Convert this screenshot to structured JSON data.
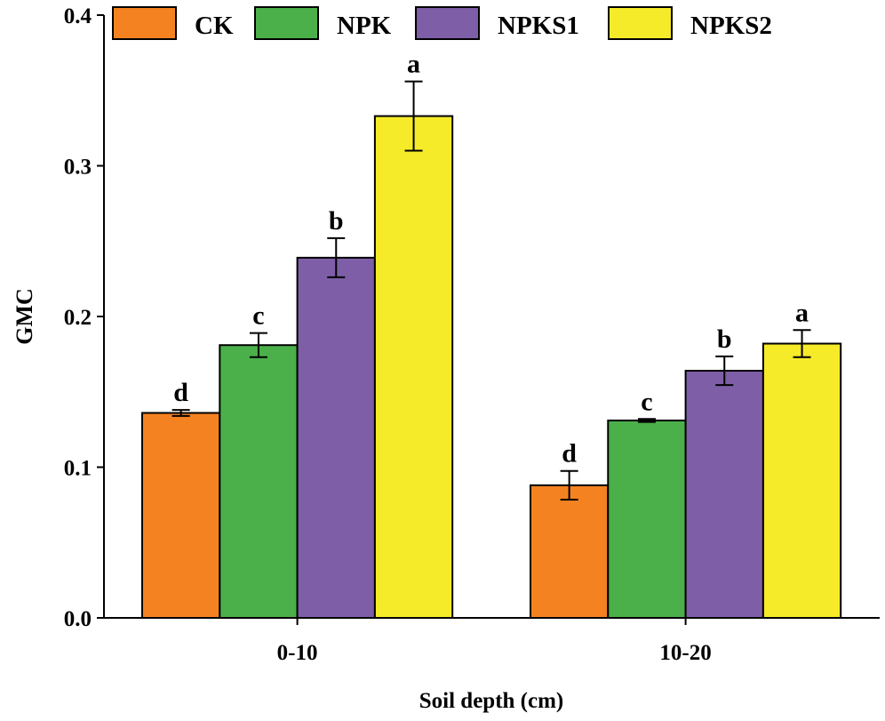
{
  "chart_data": {
    "type": "bar",
    "title": "",
    "xlabel": "Soil depth (cm)",
    "ylabel": "GMC",
    "ylim": [
      0,
      0.4
    ],
    "yticks": [
      "0.0",
      "0.1",
      "0.2",
      "0.3",
      "0.4"
    ],
    "ytick_values": [
      0,
      0.1,
      0.2,
      0.3,
      0.4
    ],
    "categories": [
      "0-10",
      "10-20"
    ],
    "legend_position": "top",
    "grid": false,
    "series": [
      {
        "name": "CK",
        "color": "#F58220",
        "values": [
          0.136,
          0.088
        ],
        "errors": [
          0.002,
          0.0095
        ],
        "letters": [
          "d",
          "d"
        ]
      },
      {
        "name": "NPK",
        "color": "#4BB04A",
        "values": [
          0.181,
          0.131
        ],
        "errors": [
          0.008,
          0.001
        ],
        "letters": [
          "c",
          "c"
        ]
      },
      {
        "name": "NPKS1",
        "color": "#7E5EA7",
        "values": [
          0.239,
          0.164
        ],
        "errors": [
          0.013,
          0.0095
        ],
        "letters": [
          "b",
          "b"
        ]
      },
      {
        "name": "NPKS2",
        "color": "#F6EB29",
        "values": [
          0.333,
          0.182
        ],
        "errors": [
          0.023,
          0.009
        ],
        "letters": [
          "a",
          "a"
        ]
      }
    ]
  }
}
